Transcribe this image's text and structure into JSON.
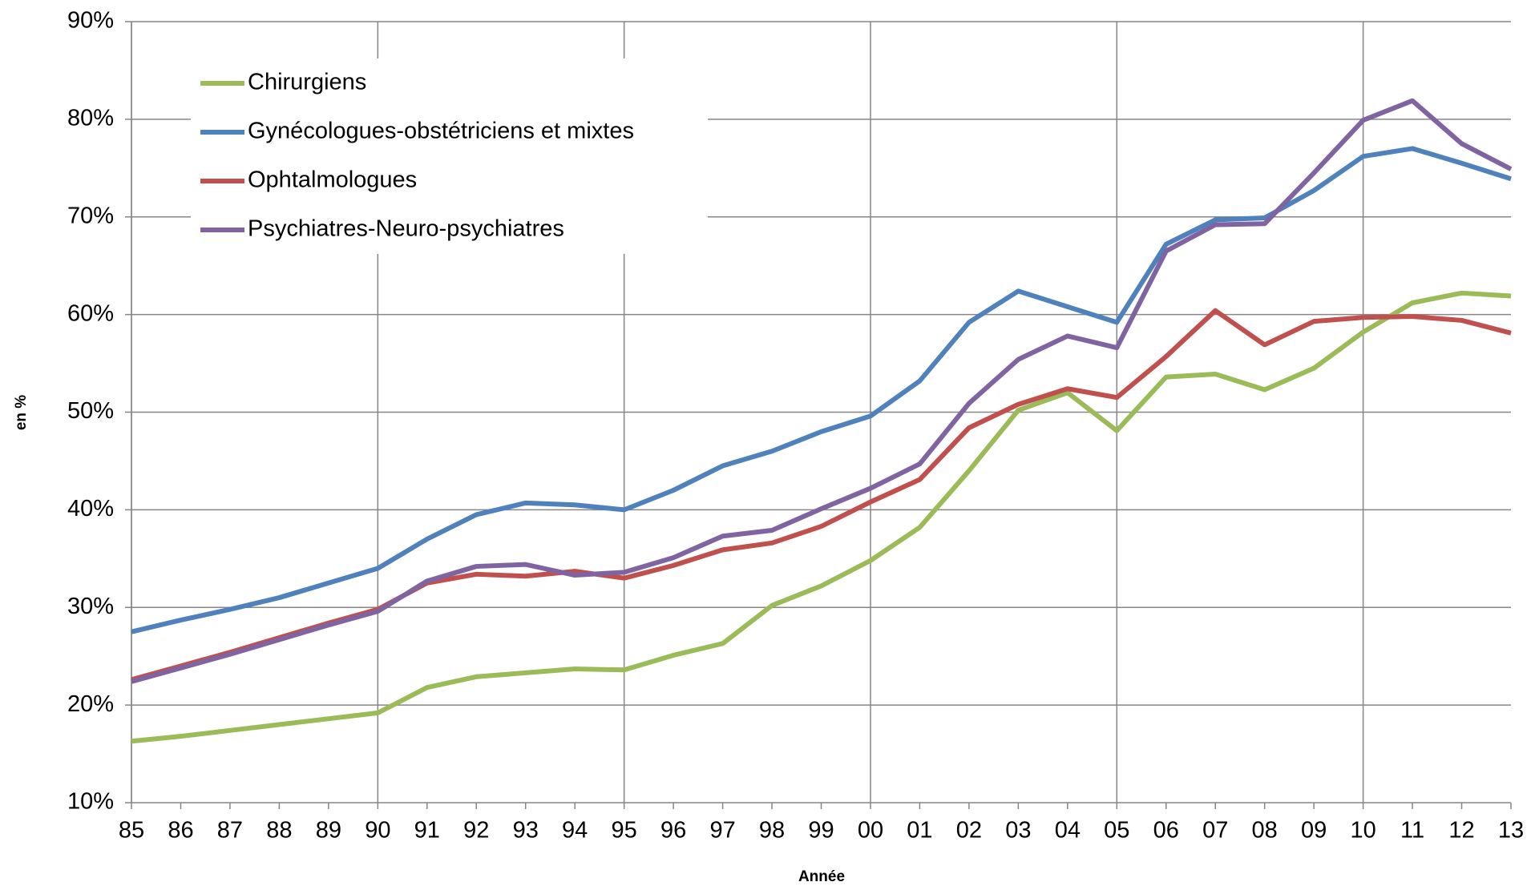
{
  "chart_data": {
    "type": "line",
    "y_label": "en %",
    "x_label": "Année",
    "categories": [
      "85",
      "86",
      "87",
      "88",
      "89",
      "90",
      "91",
      "92",
      "93",
      "94",
      "95",
      "96",
      "97",
      "98",
      "99",
      "00",
      "01",
      "02",
      "03",
      "04",
      "05",
      "06",
      "07",
      "08",
      "09",
      "10",
      "11",
      "12",
      "13"
    ],
    "series": [
      {
        "name": "Chirurgiens",
        "color": "#9bbb59",
        "values": [
          16.3,
          16.8,
          17.4,
          18.0,
          18.6,
          19.2,
          21.8,
          22.9,
          23.3,
          23.7,
          23.6,
          25.1,
          26.3,
          30.2,
          32.2,
          34.8,
          38.2,
          44.0,
          50.2,
          52.0,
          48.1,
          53.6,
          53.9,
          52.3,
          54.5,
          58.2,
          61.2,
          62.2,
          61.9
        ]
      },
      {
        "name": "Gynécologues-obstétriciens et mixtes",
        "color": "#4f81bd",
        "values": [
          27.5,
          28.7,
          29.8,
          31.0,
          32.5,
          34.0,
          37.0,
          39.5,
          40.7,
          40.5,
          40.0,
          42.0,
          44.5,
          46.0,
          48.0,
          49.6,
          53.2,
          59.2,
          62.4,
          60.8,
          59.2,
          67.2,
          69.7,
          69.9,
          72.7,
          76.2,
          77.0,
          75.5,
          73.9
        ]
      },
      {
        "name": "Ophtalmologues",
        "color": "#c0504d",
        "values": [
          22.6,
          24.0,
          25.4,
          26.9,
          28.4,
          29.8,
          32.5,
          33.4,
          33.2,
          33.7,
          33.0,
          34.3,
          35.9,
          36.6,
          38.3,
          40.8,
          43.1,
          48.4,
          50.8,
          52.4,
          51.5,
          55.7,
          60.4,
          56.9,
          59.3,
          59.7,
          59.8,
          59.4,
          58.1
        ]
      },
      {
        "name": "Psychiatres-Neuro-psychiatres",
        "color": "#8064a2",
        "values": [
          22.4,
          23.8,
          25.2,
          26.7,
          28.2,
          29.6,
          32.7,
          34.2,
          34.4,
          33.3,
          33.6,
          35.1,
          37.3,
          37.9,
          40.1,
          42.2,
          44.7,
          50.9,
          55.4,
          57.8,
          56.6,
          66.5,
          69.2,
          69.3,
          74.5,
          79.9,
          81.9,
          77.5,
          74.9
        ]
      }
    ],
    "ylim": [
      10,
      90
    ],
    "yticks": [
      {
        "value": 10,
        "label": "10%"
      },
      {
        "value": 20,
        "label": "20%"
      },
      {
        "value": 30,
        "label": "30%"
      },
      {
        "value": 40,
        "label": "40%"
      },
      {
        "value": 50,
        "label": "50%"
      },
      {
        "value": 60,
        "label": "60%"
      },
      {
        "value": 70,
        "label": "70%"
      },
      {
        "value": 80,
        "label": "80%"
      },
      {
        "value": 90,
        "label": "90%"
      }
    ],
    "grid": true,
    "legend": "upper left"
  }
}
